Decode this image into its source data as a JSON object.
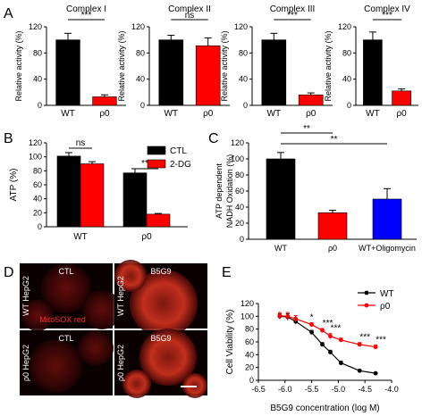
{
  "chart_data": [
    {
      "panel": "A",
      "type": "bar",
      "title": "Complex I",
      "ylabel": "Relative activity (%)",
      "ylim": [
        0,
        120
      ],
      "yticks": [
        0,
        40,
        80,
        120
      ],
      "categories": [
        "WT",
        "ρ0"
      ],
      "values": [
        100,
        13
      ],
      "errors": [
        10,
        3
      ],
      "colors": [
        "#000000",
        "#ff0000"
      ],
      "sig": "***"
    },
    {
      "panel": "A",
      "type": "bar",
      "title": "Complex II",
      "ylabel": "Relative activity (%)",
      "ylim": [
        0,
        120
      ],
      "yticks": [
        0,
        40,
        80,
        120
      ],
      "categories": [
        "WT",
        "ρ0"
      ],
      "values": [
        100,
        91
      ],
      "errors": [
        7,
        12
      ],
      "colors": [
        "#000000",
        "#ff0000"
      ],
      "sig": "ns"
    },
    {
      "panel": "A",
      "type": "bar",
      "title": "Complex III",
      "ylabel": "Relative activity (%)",
      "ylim": [
        0,
        120
      ],
      "yticks": [
        0,
        40,
        80,
        120
      ],
      "categories": [
        "WT",
        "ρ0"
      ],
      "values": [
        100,
        16
      ],
      "errors": [
        10,
        3
      ],
      "colors": [
        "#000000",
        "#ff0000"
      ],
      "sig": "***"
    },
    {
      "panel": "A",
      "type": "bar",
      "title": "Complex IV",
      "ylabel": "Relative activity (%)",
      "ylim": [
        0,
        120
      ],
      "yticks": [
        0,
        40,
        80,
        120
      ],
      "categories": [
        "WT",
        "ρ0"
      ],
      "values": [
        100,
        22
      ],
      "errors": [
        12,
        3
      ],
      "colors": [
        "#000000",
        "#ff0000"
      ],
      "sig": "***"
    },
    {
      "panel": "B",
      "type": "bar",
      "title": "",
      "ylabel": "ATP (%)",
      "ylim": [
        0,
        120
      ],
      "yticks": [
        0,
        20,
        40,
        60,
        80,
        100,
        120
      ],
      "categories": [
        "WT",
        "ρ0"
      ],
      "series": [
        {
          "name": "CTL",
          "color": "#000000",
          "values": [
            101,
            77
          ],
          "errors": [
            5,
            6
          ]
        },
        {
          "name": "2-DG",
          "color": "#ff0000",
          "values": [
            90,
            18
          ],
          "errors": [
            3,
            1
          ]
        }
      ],
      "sig": [
        "ns",
        "***"
      ],
      "legend": "top-right"
    },
    {
      "panel": "C",
      "type": "bar",
      "title": "",
      "ylabel": "ATP dependent NADH Oxidation (%)",
      "ylim": [
        0,
        120
      ],
      "yticks": [
        0,
        20,
        40,
        60,
        80,
        100,
        120
      ],
      "categories": [
        "WT",
        "ρ0",
        "WT+Oligomycin"
      ],
      "values": [
        100,
        33,
        50
      ],
      "errors": [
        8,
        3,
        13
      ],
      "colors": [
        "#000000",
        "#ff0000",
        "#0000ff"
      ],
      "sig": [
        "**",
        "**"
      ]
    },
    {
      "panel": "E",
      "type": "line",
      "title": "",
      "xlabel": "B5G9 concentration (log M)",
      "ylabel": "Cell Viability (%)",
      "xlim": [
        -6.5,
        -4.0
      ],
      "ylim": [
        0,
        120
      ],
      "xticks": [
        -6.5,
        -6.0,
        -5.5,
        -5.0,
        -4.5,
        -4.0
      ],
      "yticks": [
        0,
        20,
        40,
        60,
        80,
        100,
        120
      ],
      "xtick_labels": [
        "-6.5",
        "-6.0",
        "-5.5",
        "-5.0",
        "-4.5",
        "-4.0"
      ],
      "series": [
        {
          "name": "WT",
          "color": "#000000",
          "x": [
            -6.1,
            -5.95,
            -5.8,
            -5.5,
            -5.3,
            -5.15,
            -4.95,
            -4.6,
            -4.3
          ],
          "y": [
            100,
            99,
            92,
            75,
            56,
            44,
            27,
            15,
            11
          ],
          "errors": [
            4,
            5,
            4,
            3,
            3,
            3,
            3,
            2,
            1
          ]
        },
        {
          "name": "ρ0",
          "color": "#ff0000",
          "x": [
            -6.1,
            -5.95,
            -5.8,
            -5.5,
            -5.3,
            -5.15,
            -4.95,
            -4.6,
            -4.3
          ],
          "y": [
            101,
            100,
            96,
            87,
            78,
            69,
            63,
            56,
            52
          ],
          "errors": [
            5,
            6,
            5,
            3,
            3,
            4,
            3,
            3,
            3
          ]
        }
      ],
      "annotations": [
        "*",
        "***",
        "***",
        "***",
        "***"
      ],
      "legend": "top-right"
    }
  ],
  "panel_d": {
    "panel": "D",
    "col_labels": [
      "CTL",
      "B5G9"
    ],
    "row_labels": [
      "WT HepG2",
      "ρ0 HepG2"
    ],
    "stain": "MitoSOX red"
  },
  "panel_letters": [
    "A",
    "B",
    "C",
    "D",
    "E"
  ]
}
